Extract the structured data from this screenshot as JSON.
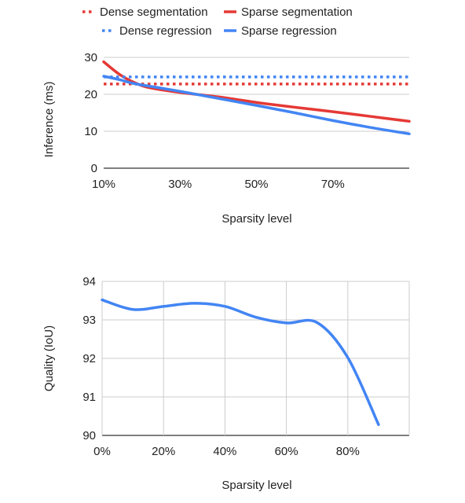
{
  "chart_data": [
    {
      "type": "line",
      "xlabel": "Sparsity level",
      "ylabel": "Inference (ms)",
      "x_ticks": [
        "10%",
        "30%",
        "50%",
        "70%"
      ],
      "xlim": [
        10,
        90
      ],
      "ylim": [
        0,
        30
      ],
      "y_ticks": [
        "0",
        "10",
        "20",
        "30"
      ],
      "grid": true,
      "legend": "top",
      "series": [
        {
          "name": "Dense segmentation",
          "style": "dotted",
          "color": "#e53935",
          "x": [
            10,
            90
          ],
          "y": [
            22.8,
            22.8
          ]
        },
        {
          "name": "Sparse segmentation",
          "style": "solid",
          "color": "#e53935",
          "x": [
            10,
            14,
            18,
            22,
            30,
            40,
            50,
            60,
            70,
            80,
            90
          ],
          "y": [
            28.8,
            25.5,
            23.2,
            21.8,
            20.5,
            19.3,
            17.8,
            16.5,
            15.3,
            14.0,
            12.7
          ]
        },
        {
          "name": "Dense regression",
          "style": "dotted",
          "color": "#4285f4",
          "x": [
            10,
            90
          ],
          "y": [
            24.7,
            24.7
          ]
        },
        {
          "name": "Sparse regression",
          "style": "solid",
          "color": "#4285f4",
          "x": [
            10,
            14,
            18,
            22,
            30,
            40,
            50,
            60,
            70,
            80,
            90
          ],
          "y": [
            24.9,
            24.0,
            22.9,
            22.2,
            20.8,
            18.9,
            17.0,
            15.0,
            12.9,
            11.0,
            9.3
          ]
        }
      ]
    },
    {
      "type": "line",
      "xlabel": "Sparsity level",
      "ylabel": "Quality (IoU)",
      "x_ticks": [
        "0%",
        "20%",
        "40%",
        "60%",
        "80%"
      ],
      "xlim": [
        0,
        100
      ],
      "ylim": [
        90,
        94
      ],
      "y_ticks": [
        "90",
        "91",
        "92",
        "93",
        "94"
      ],
      "grid": true,
      "series": [
        {
          "style": "solid",
          "color": "#4285f4",
          "x": [
            0,
            10,
            20,
            30,
            40,
            50,
            60,
            70,
            80,
            90
          ],
          "y": [
            93.52,
            93.27,
            93.35,
            93.43,
            93.35,
            93.07,
            92.92,
            92.93,
            92.02,
            90.28
          ]
        }
      ]
    }
  ]
}
